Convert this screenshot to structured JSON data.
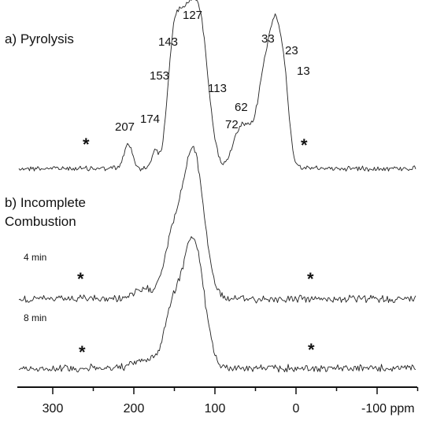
{
  "chart_data": {
    "type": "line",
    "x_axis": {
      "reversed": true,
      "range": [
        340,
        -150
      ],
      "major_ticks": [
        300,
        200,
        100,
        0,
        -100
      ],
      "tick_labels": [
        "300",
        "200",
        "100",
        "0",
        "-100 ppm"
      ],
      "minor_ticks": [
        350,
        250,
        150,
        50,
        -50,
        -150
      ]
    },
    "panels": [
      {
        "label": "a) Pyrolysis",
        "series": [
          {
            "peaks": [
              {
                "ppm": 207,
                "height": 0.16,
                "width": 5
              },
              {
                "ppm": 174,
                "height": 0.12,
                "width": 4
              },
              {
                "ppm": 153,
                "height": 0.55,
                "width": 7
              },
              {
                "ppm": 143,
                "height": 0.45,
                "width": 8
              },
              {
                "ppm": 127,
                "height": 0.95,
                "width": 12
              },
              {
                "ppm": 113,
                "height": 0.35,
                "width": 9
              },
              {
                "ppm": 72,
                "height": 0.18,
                "width": 8
              },
              {
                "ppm": 62,
                "height": 0.14,
                "width": 7
              },
              {
                "ppm": 33,
                "height": 0.78,
                "width": 13
              },
              {
                "ppm": 23,
                "height": 0.36,
                "width": 6
              },
              {
                "ppm": 13,
                "height": 0.3,
                "width": 5
              }
            ]
          }
        ],
        "peak_labels": [
          "207",
          "174",
          "153",
          "143",
          "127",
          "113",
          "72",
          "62",
          "33",
          "23",
          "13"
        ],
        "spinning_sidebands": [
          {
            "ppm": 268,
            "mark": "*"
          },
          {
            "ppm": -10,
            "mark": "*"
          }
        ]
      },
      {
        "label_lines": [
          "b) Incomplete",
          "Combustion"
        ],
        "series": [
          {
            "name": "4 min",
            "peaks": [
              {
                "ppm": 127,
                "height": 1.0,
                "width": 13
              },
              {
                "ppm": 153,
                "height": 0.35,
                "width": 10
              },
              {
                "ppm": 185,
                "height": 0.06,
                "width": 15
              }
            ],
            "sidebands": [
              {
                "ppm": 272,
                "mark": "*"
              },
              {
                "ppm": -20,
                "mark": "*"
              }
            ]
          },
          {
            "name": "8 min",
            "peaks": [
              {
                "ppm": 127,
                "height": 0.8,
                "width": 13
              },
              {
                "ppm": 153,
                "height": 0.32,
                "width": 10
              },
              {
                "ppm": 185,
                "height": 0.05,
                "width": 15
              }
            ],
            "sidebands": [
              {
                "ppm": 272,
                "mark": "*"
              },
              {
                "ppm": -20,
                "mark": "*"
              }
            ]
          }
        ]
      }
    ],
    "legend": "none",
    "grid": false
  }
}
